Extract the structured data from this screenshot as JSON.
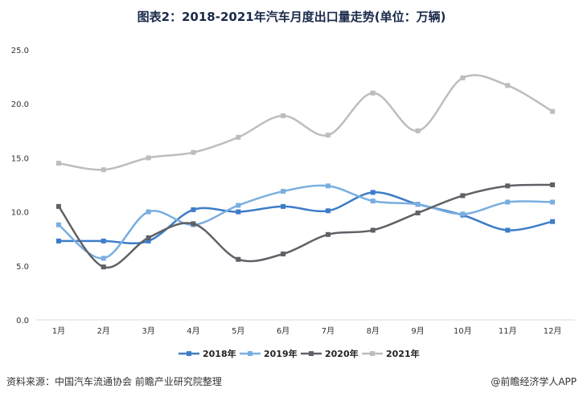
{
  "chart_data": {
    "type": "line",
    "title": "图表2：2018-2021年汽车月度出口量走势(单位：万辆)",
    "categories": [
      "1月",
      "2月",
      "3月",
      "4月",
      "5月",
      "6月",
      "7月",
      "8月",
      "9月",
      "10月",
      "11月",
      "12月"
    ],
    "ylim": [
      0,
      25
    ],
    "yticks": [
      "0.0",
      "5.0",
      "10.0",
      "15.0",
      "20.0",
      "25.0"
    ],
    "smooth": true,
    "grid": false,
    "legend_position": "bottom",
    "series": [
      {
        "name": "2018年",
        "color": "#3d7cc9",
        "values": [
          7.3,
          7.3,
          7.3,
          10.2,
          10.0,
          10.5,
          10.1,
          11.8,
          10.7,
          9.7,
          8.3,
          9.1
        ]
      },
      {
        "name": "2019年",
        "color": "#7aaee0",
        "values": [
          8.8,
          5.7,
          10.0,
          8.8,
          10.6,
          11.9,
          12.4,
          11.0,
          10.7,
          9.8,
          10.9,
          10.9
        ]
      },
      {
        "name": "2020年",
        "color": "#5f6166",
        "values": [
          10.5,
          4.9,
          7.6,
          8.9,
          5.6,
          6.1,
          7.9,
          8.3,
          9.9,
          11.5,
          12.4,
          12.5
        ]
      },
      {
        "name": "2021年",
        "color": "#bdbdbd",
        "values": [
          14.5,
          13.9,
          15.0,
          15.5,
          16.9,
          18.9,
          17.1,
          21.0,
          17.5,
          22.4,
          21.7,
          19.3
        ]
      }
    ]
  },
  "footer": {
    "source": "资料来源：中国汽车流通协会 前瞻产业研究院整理",
    "brand": "@前瞻经济学人APP"
  }
}
